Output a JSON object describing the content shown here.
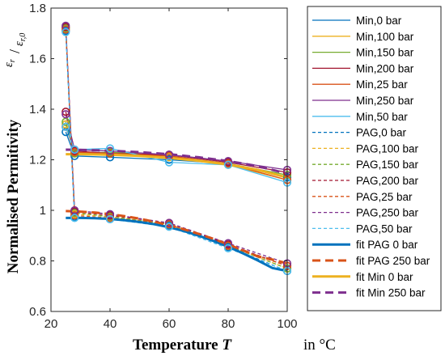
{
  "chart_data": {
    "type": "line",
    "title": "",
    "xlabel": "Temperature",
    "xlabel_var": "T",
    "x_unit": "in °C",
    "ylabel": "Normalised Permitivity",
    "ylabel_ratio": {
      "num": "ε",
      "num_sub": "r",
      "den": "ε",
      "den_sub": "r,0"
    },
    "xlim": [
      20,
      100
    ],
    "ylim": [
      0.6,
      1.8
    ],
    "xticks": [
      "20",
      "40",
      "60",
      "80",
      "100"
    ],
    "yticks": [
      "0.6",
      "0.8",
      "1",
      "1.2",
      "1.4",
      "1.6",
      "1.8"
    ],
    "grid": false,
    "legend_position": "outside-right",
    "series": [
      {
        "name": "Min,0 bar",
        "color": "#0072BD",
        "style": "solid-marker",
        "x": [
          25,
          28,
          40,
          60,
          80,
          100
        ],
        "y": [
          1.31,
          1.215,
          1.21,
          1.2,
          1.185,
          1.13
        ]
      },
      {
        "name": "Min,100 bar",
        "color": "#EDB120",
        "style": "solid-marker",
        "x": [
          25,
          28,
          40,
          60,
          80,
          100
        ],
        "y": [
          1.34,
          1.225,
          1.225,
          1.21,
          1.18,
          1.12
        ]
      },
      {
        "name": "Min,150 bar",
        "color": "#77AC30",
        "style": "solid-marker",
        "x": [
          25,
          28,
          40,
          60,
          80,
          100
        ],
        "y": [
          1.35,
          1.225,
          1.23,
          1.215,
          1.185,
          1.14
        ]
      },
      {
        "name": "Min,200 bar",
        "color": "#A2142F",
        "style": "solid-marker",
        "x": [
          25,
          28,
          40,
          60,
          80,
          100
        ],
        "y": [
          1.39,
          1.235,
          1.225,
          1.22,
          1.19,
          1.15
        ]
      },
      {
        "name": "Min,25 bar",
        "color": "#D95319",
        "style": "solid-marker",
        "x": [
          25,
          28,
          40,
          60,
          80,
          100
        ],
        "y": [
          1.33,
          1.23,
          1.225,
          1.215,
          1.185,
          1.12
        ]
      },
      {
        "name": "Min,250 bar",
        "color": "#7E2F8E",
        "style": "solid-marker",
        "x": [
          25,
          28,
          40,
          60,
          80,
          100
        ],
        "y": [
          1.38,
          1.24,
          1.235,
          1.22,
          1.195,
          1.16
        ]
      },
      {
        "name": "Min,50 bar",
        "color": "#4DBEEE",
        "style": "solid-marker",
        "x": [
          25,
          28,
          40,
          60,
          80,
          100
        ],
        "y": [
          1.33,
          1.24,
          1.245,
          1.19,
          1.18,
          1.11
        ]
      },
      {
        "name": "PAG,0 bar",
        "color": "#0072BD",
        "style": "dashed-marker",
        "x": [
          25,
          28,
          40,
          60,
          80,
          100
        ],
        "y": [
          1.71,
          0.975,
          0.965,
          0.94,
          0.855,
          0.76
        ]
      },
      {
        "name": "PAG,100 bar",
        "color": "#EDB120",
        "style": "dashed-marker",
        "x": [
          25,
          28,
          40,
          60,
          80,
          100
        ],
        "y": [
          1.72,
          0.985,
          0.975,
          0.945,
          0.86,
          0.77
        ]
      },
      {
        "name": "PAG,150 bar",
        "color": "#77AC30",
        "style": "dashed-marker",
        "x": [
          25,
          28,
          40,
          60,
          80,
          100
        ],
        "y": [
          1.72,
          0.99,
          0.975,
          0.945,
          0.86,
          0.77
        ]
      },
      {
        "name": "PAG,200 bar",
        "color": "#A2142F",
        "style": "dashed-marker",
        "x": [
          25,
          28,
          40,
          60,
          80,
          100
        ],
        "y": [
          1.725,
          0.995,
          0.98,
          0.95,
          0.865,
          0.78
        ]
      },
      {
        "name": "PAG,25 bar",
        "color": "#D95319",
        "style": "dashed-marker",
        "x": [
          25,
          28,
          40,
          60,
          80,
          100
        ],
        "y": [
          1.715,
          0.98,
          0.97,
          0.945,
          0.86,
          0.78
        ]
      },
      {
        "name": "PAG,250 bar",
        "color": "#7E2F8E",
        "style": "dashed-marker",
        "x": [
          25,
          28,
          40,
          60,
          80,
          100
        ],
        "y": [
          1.73,
          1.0,
          0.985,
          0.95,
          0.87,
          0.79
        ]
      },
      {
        "name": "PAG,50 bar",
        "color": "#4DBEEE",
        "style": "dashed-marker",
        "x": [
          25,
          28,
          40,
          60,
          80,
          100
        ],
        "y": [
          1.705,
          0.97,
          0.965,
          0.935,
          0.85,
          0.76
        ]
      },
      {
        "name": "fit PAG 0 bar",
        "color": "#0072BD",
        "style": "thick-solid",
        "x": [
          25,
          30,
          35,
          40,
          45,
          50,
          55,
          60,
          65,
          70,
          75,
          80,
          85,
          90,
          95,
          100
        ],
        "y": [
          0.97,
          0.97,
          0.969,
          0.966,
          0.961,
          0.954,
          0.945,
          0.933,
          0.918,
          0.9,
          0.879,
          0.856,
          0.83,
          0.802,
          0.772,
          0.76
        ]
      },
      {
        "name": "fit PAG 250 bar",
        "color": "#D95319",
        "style": "thick-dashed",
        "x": [
          25,
          30,
          35,
          40,
          45,
          50,
          55,
          60,
          65,
          70,
          75,
          80,
          85,
          90,
          95,
          100
        ],
        "y": [
          0.997,
          0.995,
          0.991,
          0.985,
          0.977,
          0.967,
          0.955,
          0.941,
          0.925,
          0.907,
          0.887,
          0.865,
          0.842,
          0.818,
          0.805,
          0.79
        ]
      },
      {
        "name": "fit Min 0 bar",
        "color": "#EDB120",
        "style": "thick-solid",
        "x": [
          25,
          30,
          40,
          50,
          60,
          70,
          80,
          90,
          100
        ],
        "y": [
          1.222,
          1.222,
          1.22,
          1.215,
          1.207,
          1.196,
          1.181,
          1.16,
          1.13
        ]
      },
      {
        "name": "fit Min 250 bar",
        "color": "#7E2F8E",
        "style": "thick-dashed",
        "x": [
          25,
          30,
          40,
          50,
          60,
          70,
          80,
          90,
          100
        ],
        "y": [
          1.24,
          1.239,
          1.236,
          1.23,
          1.222,
          1.21,
          1.195,
          1.175,
          1.145
        ]
      }
    ]
  }
}
